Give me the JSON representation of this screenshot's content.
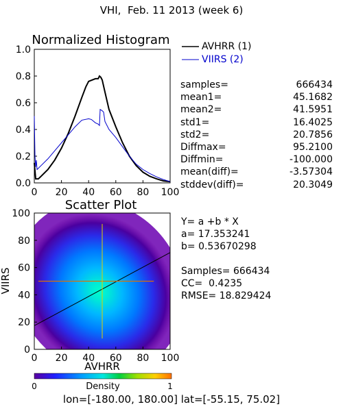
{
  "page": {
    "title": "VHI,  Feb. 11 2013 (week 6)",
    "footer_prefix": "lon=[",
    "footer_lon": "-180.00, 180.00",
    "footer_mid": "] lat=[",
    "footer_lat": "-55.15, 75.02",
    "footer_suffix": "]"
  },
  "histogram_stats": [
    {
      "label": "samples=",
      "value": "666434"
    },
    {
      "label": "mean1=",
      "value": "45.1682"
    },
    {
      "label": "mean2=",
      "value": "41.5951"
    },
    {
      "label": "std1=",
      "value": "16.4025"
    },
    {
      "label": "std2=",
      "value": "20.7856"
    },
    {
      "label": "Diffmax=",
      "value": "95.2100"
    },
    {
      "label": "Diffmin=",
      "value": "-100.000"
    },
    {
      "label": "mean(diff)=",
      "value": "-3.57304"
    },
    {
      "label": "stddev(diff)=",
      "value": "20.3049"
    }
  ],
  "scatter_stats": {
    "equation": "Y= a +b * X",
    "a": "a= 17.353241",
    "b": "b= 0.53670298",
    "samples": "Samples= 666434",
    "cc": "CC=  0.4235",
    "rmse": "RMSE= 18.829424"
  },
  "colors": {
    "avhrr": "#000000",
    "viirs": "#0000cc",
    "crosshair_h": "#e07000",
    "crosshair_v": "#e0d000"
  },
  "chart_data": [
    {
      "type": "line",
      "title": "Normalized Histogram",
      "xlim": [
        0,
        100
      ],
      "ylim": [
        0,
        1.0
      ],
      "xticks": [
        "0",
        "20",
        "40",
        "60",
        "80",
        "100"
      ],
      "yticks": [
        "0.0",
        "0.2",
        "0.4",
        "0.6",
        "0.8",
        "1.0"
      ],
      "series": [
        {
          "name": "AVHRR (1)",
          "color": "#000000",
          "points": [
            [
              0,
              0.15
            ],
            [
              1,
              0.03
            ],
            [
              3,
              0.03
            ],
            [
              5,
              0.05
            ],
            [
              10,
              0.1
            ],
            [
              15,
              0.17
            ],
            [
              20,
              0.26
            ],
            [
              25,
              0.37
            ],
            [
              30,
              0.5
            ],
            [
              35,
              0.64
            ],
            [
              38,
              0.72
            ],
            [
              40,
              0.76
            ],
            [
              45,
              0.78
            ],
            [
              47,
              0.78
            ],
            [
              48,
              0.8
            ],
            [
              49,
              0.79
            ],
            [
              50,
              0.77
            ],
            [
              52,
              0.68
            ],
            [
              55,
              0.55
            ],
            [
              60,
              0.42
            ],
            [
              65,
              0.3
            ],
            [
              70,
              0.2
            ],
            [
              75,
              0.13
            ],
            [
              80,
              0.08
            ],
            [
              85,
              0.05
            ],
            [
              90,
              0.03
            ],
            [
              95,
              0.015
            ],
            [
              100,
              0.01
            ]
          ]
        },
        {
          "name": "VIIRS (2)",
          "color": "#0000cc",
          "points": [
            [
              0,
              0.5
            ],
            [
              0.5,
              0.2
            ],
            [
              1,
              0.12
            ],
            [
              1.5,
              0.17
            ],
            [
              2,
              0.1
            ],
            [
              5,
              0.13
            ],
            [
              10,
              0.18
            ],
            [
              15,
              0.24
            ],
            [
              20,
              0.3
            ],
            [
              25,
              0.36
            ],
            [
              30,
              0.42
            ],
            [
              35,
              0.47
            ],
            [
              40,
              0.48
            ],
            [
              42,
              0.475
            ],
            [
              45,
              0.45
            ],
            [
              47,
              0.44
            ],
            [
              48,
              0.43
            ],
            [
              48.5,
              0.55
            ],
            [
              50,
              0.54
            ],
            [
              51,
              0.53
            ],
            [
              52,
              0.46
            ],
            [
              55,
              0.4
            ],
            [
              60,
              0.34
            ],
            [
              65,
              0.27
            ],
            [
              70,
              0.2
            ],
            [
              75,
              0.14
            ],
            [
              80,
              0.1
            ],
            [
              85,
              0.07
            ],
            [
              90,
              0.045
            ],
            [
              95,
              0.025
            ],
            [
              100,
              0.01
            ]
          ]
        }
      ]
    },
    {
      "type": "scatter",
      "title": "Scatter Plot",
      "xlabel": "AVHRR",
      "ylabel": "VIIRS",
      "xlim": [
        0,
        100
      ],
      "ylim": [
        0,
        100
      ],
      "xticks": [
        "0",
        "20",
        "40",
        "60",
        "80",
        "100"
      ],
      "yticks": [
        "0",
        "20",
        "40",
        "60",
        "80",
        "100"
      ],
      "fit": {
        "a": 17.353241,
        "b": 0.53670298
      },
      "density_center": [
        45,
        40
      ],
      "colorbar": {
        "label": "Density",
        "min": "0",
        "max": "1"
      }
    }
  ]
}
